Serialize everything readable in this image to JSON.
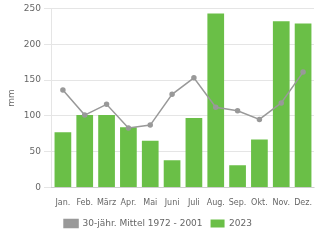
{
  "chart_data": {
    "type": "bar",
    "categories": [
      "Jan.",
      "Feb.",
      "März",
      "Apr.",
      "Mai",
      "Juni",
      "Juli",
      "Aug.",
      "Sep.",
      "Okt.",
      "Nov.",
      "Dez."
    ],
    "series": [
      {
        "name": "2023",
        "type": "bar",
        "color": "#6abf47",
        "values": [
          77,
          101,
          101,
          84,
          65,
          38,
          97,
          243,
          31,
          67,
          232,
          229
        ]
      },
      {
        "name": "30-jähr. Mittel 1972 - 2001",
        "type": "line",
        "color": "#999999",
        "marker": "circle",
        "values": [
          136,
          101,
          116,
          83,
          87,
          130,
          153,
          112,
          107,
          95,
          118,
          161
        ]
      }
    ],
    "ylabel": "mm",
    "ylim": [
      0,
      250
    ],
    "yticks": [
      0,
      50,
      100,
      150,
      200,
      250
    ],
    "grid": "y",
    "legend": "bottom"
  }
}
